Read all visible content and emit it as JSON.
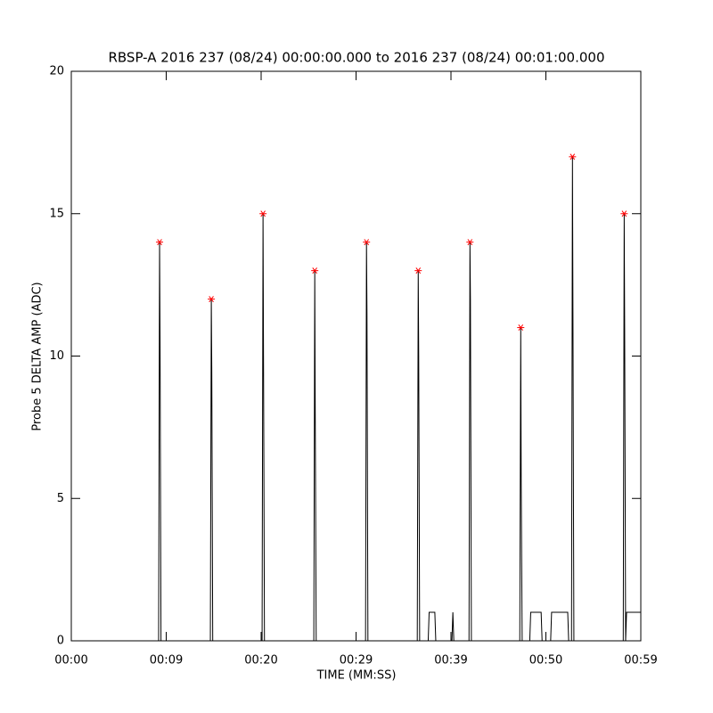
{
  "chart_data": {
    "type": "line",
    "title": "RBSP-A 2016 237 (08/24) 00:00:00.000 to 2016 237 (08/24) 00:01:00.000",
    "xlabel": "TIME (MM:SS)",
    "ylabel": "Probe 5 DELTA AMP (ADC)",
    "xlim": [
      0,
      60
    ],
    "ylim": [
      0,
      20
    ],
    "xticks": [
      {
        "value": 0,
        "label": "00:00"
      },
      {
        "value": 10,
        "label": "00:09"
      },
      {
        "value": 20,
        "label": "00:20"
      },
      {
        "value": 30,
        "label": "00:29"
      },
      {
        "value": 40,
        "label": "00:39"
      },
      {
        "value": 50,
        "label": "00:50"
      },
      {
        "value": 60,
        "label": "00:59"
      }
    ],
    "yticks": [
      0,
      5,
      10,
      15,
      20
    ],
    "series": [
      {
        "color": "#000000",
        "mode": "line",
        "x": [
          0,
          9.2,
          9.3,
          9.35,
          9.45,
          14.65,
          14.75,
          14.8,
          14.9,
          20.1,
          20.2,
          20.25,
          20.35,
          25.55,
          25.65,
          25.7,
          25.8,
          31.0,
          31.1,
          31.15,
          31.25,
          36.45,
          36.55,
          36.6,
          36.7,
          37.6,
          37.7,
          38.3,
          38.4,
          40.1,
          40.2,
          40.3,
          41.9,
          42.0,
          42.05,
          42.15,
          47.25,
          47.35,
          47.4,
          47.5,
          48.3,
          48.4,
          49.5,
          49.6,
          50.5,
          50.6,
          52.3,
          52.4,
          52.7,
          52.8,
          52.85,
          52.95,
          58.15,
          58.25,
          58.3,
          58.4,
          58.5,
          60
        ],
        "values": [
          0,
          0,
          14,
          10.5,
          0,
          0,
          12,
          9.5,
          0,
          0,
          15,
          10,
          0,
          0,
          13,
          8,
          0,
          0,
          14,
          11.5,
          0,
          0,
          13,
          10,
          0,
          0,
          1,
          1,
          0,
          0,
          1,
          0,
          0,
          14,
          12,
          0,
          0,
          11,
          5.5,
          0,
          0,
          1,
          1,
          0,
          0,
          1,
          1,
          0,
          0,
          17,
          11.5,
          0,
          0,
          15,
          11,
          0,
          1,
          1
        ]
      },
      {
        "color": "#ff0000",
        "mode": "asterisk",
        "x": [
          9.3,
          14.75,
          20.2,
          25.65,
          31.1,
          36.55,
          42.0,
          47.35,
          52.8,
          58.25
        ],
        "values": [
          14,
          12,
          15,
          13,
          14,
          13,
          14,
          11,
          17,
          15
        ]
      }
    ]
  }
}
